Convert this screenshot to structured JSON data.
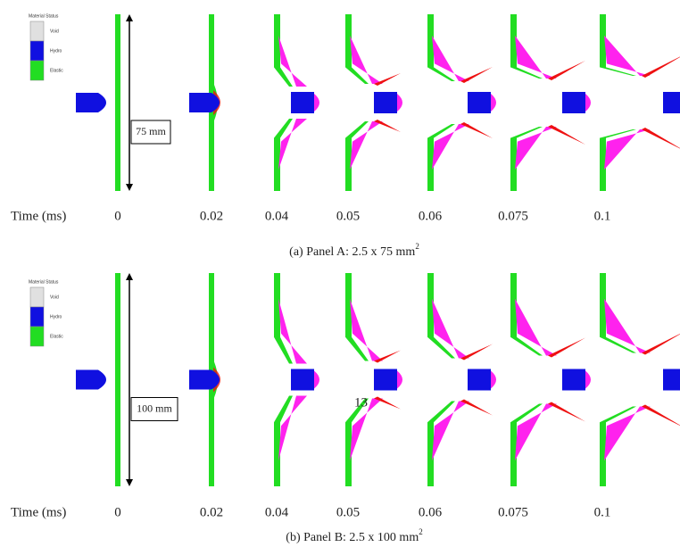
{
  "panels": [
    {
      "legend": {
        "title": "Material Status",
        "items": [
          "Void",
          "Hydro",
          "Elastic"
        ]
      },
      "dimension": "75 mm",
      "time_label": "Time (ms)",
      "times": [
        "0",
        "0.02",
        "0.04",
        "0.05",
        "0.06",
        "0.075",
        "0.1"
      ],
      "caption": "(a) Panel A: 2.5 x 75 mm",
      "caption_sup": "2"
    },
    {
      "legend": {
        "title": "Material Status",
        "items": [
          "Void",
          "Hydro",
          "Elastic"
        ]
      },
      "dimension": "100 mm",
      "time_label": "Time (ms)",
      "times": [
        "0",
        "0.02",
        "0.04",
        "0.05",
        "0.06",
        "0.075",
        "0.1"
      ],
      "caption": "(b) Panel B: 2.5 x 100 mm",
      "caption_sup": "2"
    }
  ],
  "page_number": "13"
}
